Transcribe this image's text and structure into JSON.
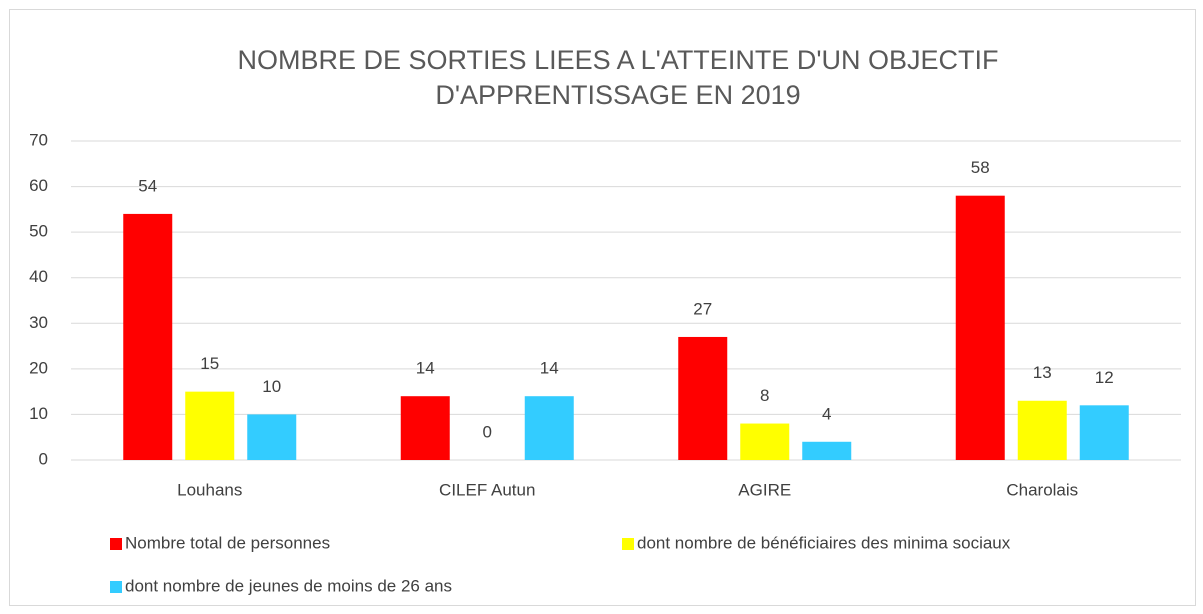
{
  "chart_data": {
    "type": "bar",
    "title": [
      "NOMBRE DE SORTIES LIEES A L'ATTEINTE D'UN OBJECTIF",
      "D'APPRENTISSAGE EN 2019"
    ],
    "categories": [
      "Louhans",
      "CILEF Autun",
      "AGIRE",
      "Charolais"
    ],
    "series": [
      {
        "name": "Nombre total de personnes",
        "color": "#ff0000",
        "values": [
          54,
          14,
          27,
          58
        ]
      },
      {
        "name": "dont nombre de bénéficiaires des minima sociaux",
        "color": "#ffff00",
        "values": [
          15,
          0,
          8,
          13
        ]
      },
      {
        "name": "dont nombre de jeunes de moins de 26 ans",
        "color": "#33ccff",
        "values": [
          10,
          14,
          4,
          12
        ]
      }
    ],
    "ylim": [
      0,
      70
    ],
    "yticks": [
      0,
      10,
      20,
      30,
      40,
      50,
      60,
      70
    ],
    "grid": true,
    "legend": "bottom"
  }
}
